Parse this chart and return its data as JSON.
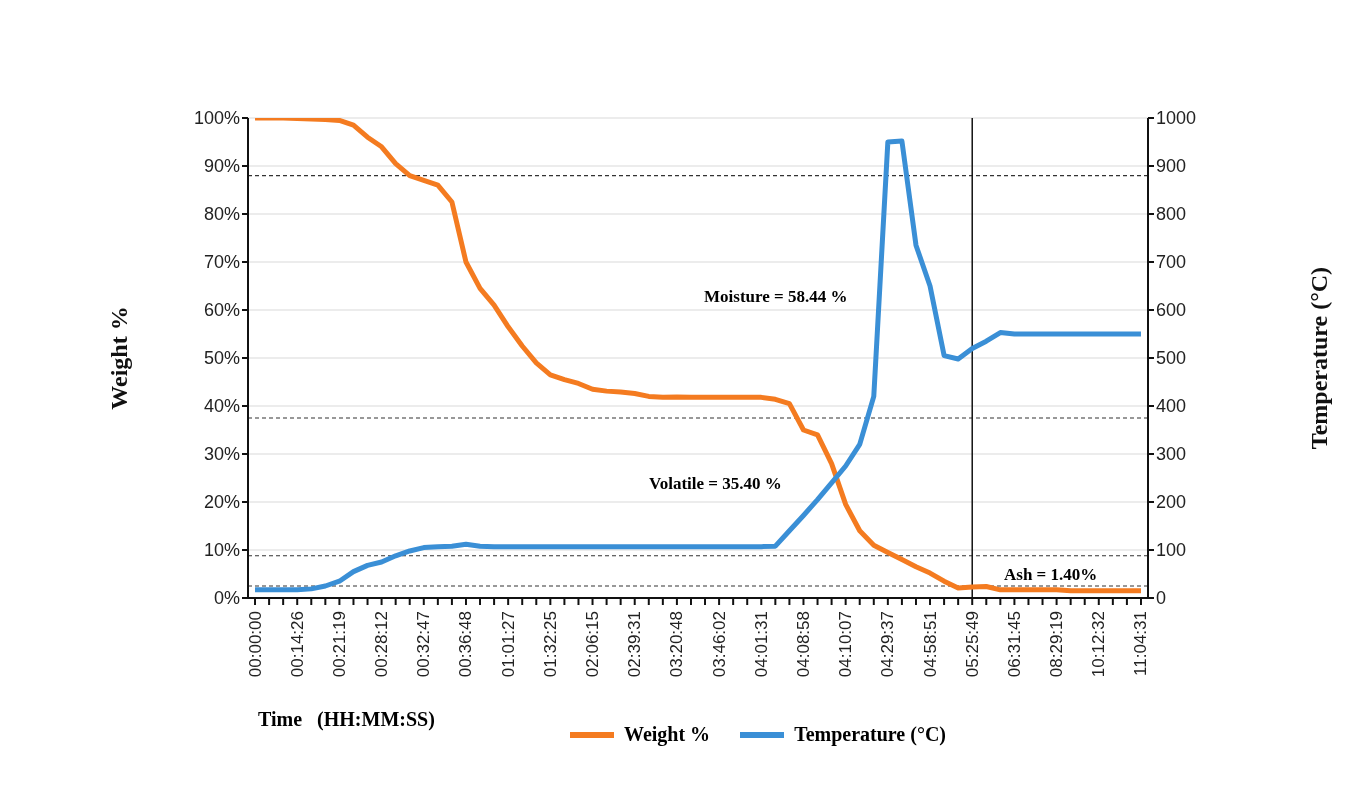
{
  "chart_data": {
    "type": "line",
    "categories": [
      "00:00:00",
      null,
      null,
      "00:14:26",
      null,
      null,
      "00:21:19",
      null,
      null,
      "00:28:12",
      null,
      null,
      "00:32:47",
      null,
      null,
      "00:36:48",
      null,
      null,
      "01:01:27",
      null,
      null,
      "01:32:25",
      null,
      null,
      "02:06:15",
      null,
      null,
      "02:39:31",
      null,
      null,
      "03:20:48",
      null,
      null,
      "03:46:02",
      null,
      null,
      "04:01:31",
      null,
      null,
      "04:08:58",
      null,
      null,
      "04:10:07",
      null,
      null,
      "04:29:37",
      null,
      null,
      "04:58:51",
      null,
      null,
      "05:25:49",
      null,
      null,
      "06:31:45",
      null,
      null,
      "08:29:19",
      null,
      null,
      "10:12:32",
      null,
      null,
      "11:04:31"
    ],
    "series": [
      {
        "name": "Weight %",
        "color": "#f47b20",
        "values": [
          100,
          100,
          100,
          99.9,
          99.8,
          99.7,
          99.5,
          98.5,
          96,
          94,
          90.5,
          88,
          87,
          86,
          82.5,
          70,
          64.5,
          61,
          56.5,
          52.5,
          49,
          46.5,
          45.5,
          44.7,
          43.5,
          43.1,
          42.9,
          42.6,
          42,
          41.8,
          41.9,
          41.8,
          41.8,
          41.8,
          41.8,
          41.8,
          41.8,
          41.4,
          40.5,
          35,
          34,
          28,
          19.5,
          14,
          11,
          9.5,
          8,
          6.5,
          5.2,
          3.5,
          2.1,
          2.3,
          2.4,
          1.7,
          1.7,
          1.7,
          1.7,
          1.7,
          1.5,
          1.5,
          1.5,
          1.5,
          1.5,
          1.5
        ]
      },
      {
        "name": "Temperature (°C)",
        "color": "#3a8fd6",
        "axis": "y2",
        "values": [
          17,
          17,
          17,
          17,
          19,
          25,
          35,
          55,
          68,
          75,
          88,
          98,
          105,
          107,
          108,
          112,
          108,
          107,
          107,
          107,
          107,
          107,
          107,
          107,
          107,
          107,
          107,
          107,
          107,
          107,
          107,
          107,
          107,
          107,
          107,
          107,
          107,
          108,
          140,
          172,
          205,
          240,
          275,
          320,
          420,
          950,
          952,
          735,
          650,
          505,
          498,
          520,
          535,
          553,
          550,
          550,
          550,
          550,
          550,
          550,
          550,
          550,
          550,
          550
        ]
      }
    ],
    "ylabel": "Weight  %",
    "y2label": "Temperature  (°C)",
    "xlabel": "Time   (HH:MM:SS)",
    "ylim": [
      0,
      100
    ],
    "yticks": [
      {
        "value": 0,
        "label": "0%"
      },
      {
        "value": 10,
        "label": "10%"
      },
      {
        "value": 20,
        "label": "20%"
      },
      {
        "value": 30,
        "label": "30%"
      },
      {
        "value": 40,
        "label": "40%"
      },
      {
        "value": 50,
        "label": "50%"
      },
      {
        "value": 60,
        "label": "60%"
      },
      {
        "value": 70,
        "label": "70%"
      },
      {
        "value": 80,
        "label": "80%"
      },
      {
        "value": 90,
        "label": "90%"
      },
      {
        "value": 100,
        "label": "100%"
      }
    ],
    "y2lim": [
      0,
      1000
    ],
    "y2ticks": [
      0,
      100,
      200,
      300,
      400,
      500,
      600,
      700,
      800,
      900,
      1000
    ],
    "ref_lines": [
      {
        "axis": "y",
        "value": 88,
        "line_style": "dashed",
        "color": "#333333"
      },
      {
        "axis": "y",
        "value": 37.5,
        "line_style": "dashed",
        "color": "#333333"
      },
      {
        "axis": "y",
        "value": 8.8,
        "line_style": "dashed",
        "color": "#333333"
      },
      {
        "axis": "y",
        "value": 2.5,
        "line_style": "dashed",
        "color": "#333333"
      },
      {
        "axis": "x",
        "value": "05:25:49",
        "line_style": "solid",
        "color": "#111111"
      }
    ],
    "annotations": [
      "Moisture = 58.44 %",
      "Volatile = 35.40 %",
      "Ash = 1.40%"
    ],
    "grid": "y",
    "legend": "bottom",
    "marker": "none",
    "line_style": "solid"
  }
}
